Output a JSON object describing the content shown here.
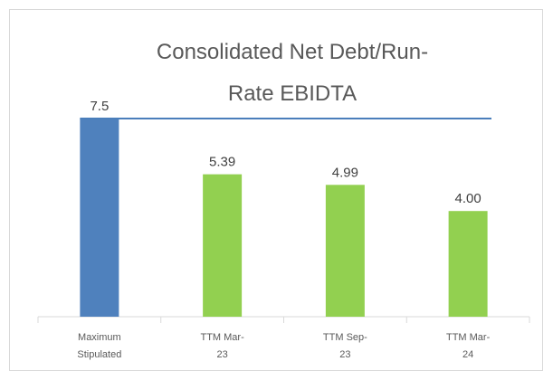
{
  "chart_data": {
    "type": "bar",
    "title": "Consolidated Net Debt/Run-Rate EBIDTA",
    "categories": [
      "Maximum Stipulated",
      "TTM Mar-23",
      "TTM Sep-23",
      "TTM Mar-24"
    ],
    "values": [
      7.5,
      5.39,
      4.99,
      4
    ],
    "value_labels": [
      "7.5",
      "5.39",
      "4.99",
      "4.00"
    ],
    "colors": [
      "#4f81bd",
      "#92d050",
      "#92d050",
      "#92d050"
    ],
    "line_color": "#4a7ebb",
    "ylim": [
      0,
      7.5
    ]
  }
}
